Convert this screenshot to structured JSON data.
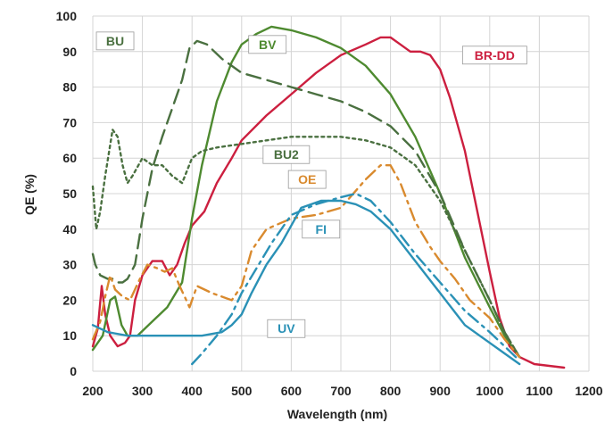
{
  "chart_data": {
    "type": "line",
    "title": "",
    "xlabel": "Wavelength (nm)",
    "ylabel": "QE (%)",
    "xlim": [
      200,
      1200
    ],
    "ylim": [
      0,
      100
    ],
    "xticks": [
      200,
      300,
      400,
      500,
      600,
      700,
      800,
      900,
      1000,
      1100,
      1200
    ],
    "yticks": [
      0,
      10,
      20,
      30,
      40,
      50,
      60,
      70,
      80,
      90,
      100
    ],
    "grid": true,
    "series": [
      {
        "name": "BR-DD",
        "color": "#cc1f3f",
        "style": "solid",
        "points": [
          [
            200,
            7
          ],
          [
            210,
            12
          ],
          [
            218,
            24
          ],
          [
            225,
            16
          ],
          [
            235,
            10
          ],
          [
            250,
            7
          ],
          [
            265,
            8
          ],
          [
            275,
            10
          ],
          [
            285,
            20
          ],
          [
            300,
            27
          ],
          [
            320,
            31
          ],
          [
            340,
            31
          ],
          [
            355,
            27
          ],
          [
            370,
            30
          ],
          [
            385,
            36
          ],
          [
            400,
            41
          ],
          [
            425,
            45
          ],
          [
            450,
            53
          ],
          [
            480,
            60
          ],
          [
            500,
            65
          ],
          [
            550,
            72
          ],
          [
            600,
            78
          ],
          [
            650,
            84
          ],
          [
            700,
            89
          ],
          [
            750,
            92
          ],
          [
            780,
            94
          ],
          [
            800,
            94
          ],
          [
            820,
            92
          ],
          [
            840,
            90
          ],
          [
            860,
            90
          ],
          [
            880,
            89
          ],
          [
            900,
            85
          ],
          [
            920,
            77
          ],
          [
            950,
            62
          ],
          [
            975,
            45
          ],
          [
            1000,
            28
          ],
          [
            1020,
            15
          ],
          [
            1040,
            7
          ],
          [
            1060,
            4
          ],
          [
            1090,
            2
          ],
          [
            1150,
            1
          ]
        ]
      },
      {
        "name": "BV",
        "color": "#4e8a30",
        "style": "solid",
        "points": [
          [
            200,
            6
          ],
          [
            220,
            10
          ],
          [
            235,
            20
          ],
          [
            245,
            21
          ],
          [
            258,
            13
          ],
          [
            270,
            10
          ],
          [
            290,
            10
          ],
          [
            320,
            14
          ],
          [
            350,
            18
          ],
          [
            380,
            25
          ],
          [
            400,
            43
          ],
          [
            420,
            58
          ],
          [
            450,
            76
          ],
          [
            480,
            87
          ],
          [
            500,
            92
          ],
          [
            530,
            95
          ],
          [
            560,
            97
          ],
          [
            600,
            96
          ],
          [
            650,
            94
          ],
          [
            700,
            91
          ],
          [
            750,
            86
          ],
          [
            800,
            78
          ],
          [
            850,
            66
          ],
          [
            900,
            50
          ],
          [
            950,
            32
          ],
          [
            1000,
            18
          ],
          [
            1030,
            10
          ],
          [
            1060,
            4
          ]
        ]
      },
      {
        "name": "BU",
        "color": "#4a7040",
        "style": "dashed",
        "points": [
          [
            200,
            33
          ],
          [
            205,
            30
          ],
          [
            215,
            27
          ],
          [
            230,
            26
          ],
          [
            240,
            26
          ],
          [
            250,
            25
          ],
          [
            260,
            25
          ],
          [
            270,
            26
          ],
          [
            285,
            30
          ],
          [
            300,
            43
          ],
          [
            320,
            57
          ],
          [
            340,
            66
          ],
          [
            360,
            74
          ],
          [
            380,
            82
          ],
          [
            395,
            91
          ],
          [
            410,
            93
          ],
          [
            430,
            92
          ],
          [
            460,
            88
          ],
          [
            500,
            84
          ],
          [
            550,
            82
          ],
          [
            600,
            80
          ],
          [
            650,
            78
          ],
          [
            700,
            76
          ],
          [
            750,
            73
          ],
          [
            800,
            69
          ],
          [
            850,
            62
          ],
          [
            900,
            50
          ],
          [
            950,
            34
          ],
          [
            1000,
            20
          ],
          [
            1030,
            11
          ],
          [
            1060,
            4
          ]
        ]
      },
      {
        "name": "BU2",
        "color": "#4a7040",
        "style": "dotted",
        "points": [
          [
            200,
            52
          ],
          [
            207,
            40
          ],
          [
            215,
            45
          ],
          [
            225,
            55
          ],
          [
            240,
            68
          ],
          [
            250,
            66
          ],
          [
            260,
            58
          ],
          [
            270,
            53
          ],
          [
            280,
            55
          ],
          [
            300,
            60
          ],
          [
            320,
            58
          ],
          [
            340,
            58
          ],
          [
            360,
            55
          ],
          [
            380,
            53
          ],
          [
            400,
            60
          ],
          [
            420,
            62
          ],
          [
            450,
            63
          ],
          [
            500,
            64
          ],
          [
            550,
            65
          ],
          [
            600,
            66
          ],
          [
            650,
            66
          ],
          [
            700,
            66
          ],
          [
            750,
            65
          ],
          [
            800,
            63
          ],
          [
            850,
            58
          ],
          [
            900,
            48
          ],
          [
            950,
            34
          ],
          [
            1000,
            20
          ],
          [
            1030,
            11
          ],
          [
            1060,
            4
          ]
        ]
      },
      {
        "name": "OE",
        "color": "#d98a2e",
        "style": "dashdot",
        "points": [
          [
            200,
            9
          ],
          [
            215,
            14
          ],
          [
            225,
            21
          ],
          [
            235,
            27
          ],
          [
            245,
            23
          ],
          [
            260,
            21
          ],
          [
            275,
            20
          ],
          [
            295,
            26
          ],
          [
            310,
            30
          ],
          [
            330,
            29
          ],
          [
            345,
            28
          ],
          [
            360,
            29
          ],
          [
            375,
            24
          ],
          [
            385,
            21
          ],
          [
            395,
            18
          ],
          [
            410,
            24
          ],
          [
            440,
            22
          ],
          [
            480,
            20
          ],
          [
            500,
            24
          ],
          [
            520,
            34
          ],
          [
            550,
            40
          ],
          [
            600,
            43
          ],
          [
            650,
            44
          ],
          [
            700,
            46
          ],
          [
            750,
            54
          ],
          [
            780,
            58
          ],
          [
            800,
            58
          ],
          [
            820,
            53
          ],
          [
            850,
            42
          ],
          [
            880,
            35
          ],
          [
            900,
            31
          ],
          [
            930,
            26
          ],
          [
            960,
            20
          ],
          [
            1000,
            15
          ],
          [
            1030,
            9
          ],
          [
            1060,
            4
          ]
        ]
      },
      {
        "name": "FI",
        "color": "#2a91b6",
        "style": "dashdot",
        "points": [
          [
            400,
            2
          ],
          [
            420,
            5
          ],
          [
            450,
            10
          ],
          [
            480,
            16
          ],
          [
            500,
            22
          ],
          [
            530,
            29
          ],
          [
            560,
            36
          ],
          [
            600,
            44
          ],
          [
            650,
            47
          ],
          [
            700,
            49
          ],
          [
            730,
            50
          ],
          [
            760,
            48
          ],
          [
            800,
            42
          ],
          [
            850,
            33
          ],
          [
            900,
            25
          ],
          [
            950,
            17
          ],
          [
            1000,
            11
          ],
          [
            1030,
            7
          ],
          [
            1060,
            3
          ]
        ]
      },
      {
        "name": "UV",
        "color": "#2a91b6",
        "style": "solid",
        "points": [
          [
            200,
            13
          ],
          [
            230,
            11
          ],
          [
            270,
            10
          ],
          [
            320,
            10
          ],
          [
            370,
            10
          ],
          [
            420,
            10
          ],
          [
            460,
            11
          ],
          [
            480,
            13
          ],
          [
            500,
            16
          ],
          [
            520,
            22
          ],
          [
            550,
            30
          ],
          [
            580,
            36
          ],
          [
            600,
            41
          ],
          [
            620,
            46
          ],
          [
            660,
            48
          ],
          [
            700,
            48
          ],
          [
            730,
            47
          ],
          [
            760,
            45
          ],
          [
            800,
            40
          ],
          [
            850,
            31
          ],
          [
            900,
            22
          ],
          [
            950,
            13
          ],
          [
            1000,
            8
          ],
          [
            1030,
            5
          ],
          [
            1060,
            2
          ]
        ]
      }
    ],
    "labels": [
      {
        "text": "BU",
        "color": "#4a7040",
        "x": 245,
        "y": 93
      },
      {
        "text": "BV",
        "color": "#4e8a30",
        "x": 552,
        "y": 92
      },
      {
        "text": "BR-DD",
        "color": "#cc1f3f",
        "x": 1010,
        "y": 89
      },
      {
        "text": "BU2",
        "color": "#4a7040",
        "x": 590,
        "y": 61
      },
      {
        "text": "OE",
        "color": "#d98a2e",
        "x": 632,
        "y": 54
      },
      {
        "text": "FI",
        "color": "#2a91b6",
        "x": 660,
        "y": 40
      },
      {
        "text": "UV",
        "color": "#2a91b6",
        "x": 590,
        "y": 12
      }
    ]
  }
}
